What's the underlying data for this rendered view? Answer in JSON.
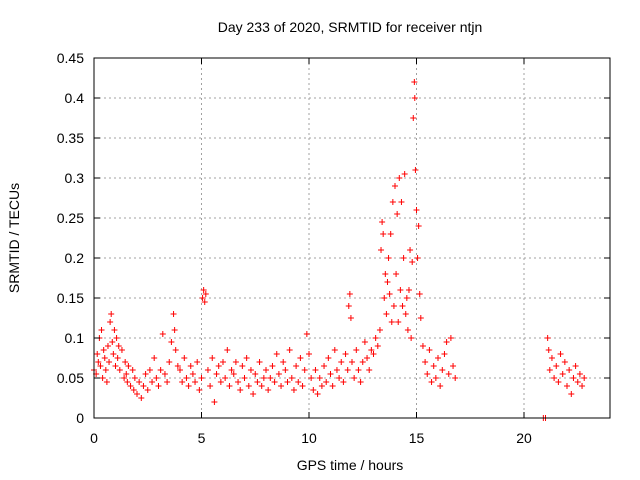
{
  "chart_data": {
    "type": "scatter",
    "title": "Day 233 of 2020, SRMTID for receiver ntjn",
    "xlabel": "GPS time / hours",
    "ylabel": "SRMTID / TECUs",
    "xlim": [
      0,
      24
    ],
    "ylim": [
      0,
      0.45
    ],
    "xticks": [
      "0",
      "5",
      "10",
      "15",
      "20"
    ],
    "yticks": [
      "0",
      "0.05",
      "0.1",
      "0.15",
      "0.2",
      "0.25",
      "0.3",
      "0.35",
      "0.4",
      "0.45"
    ],
    "grid": true,
    "marker": "plus",
    "series": [
      {
        "color": "#ff0000",
        "points": [
          [
            0.0,
            0.06
          ],
          [
            0.1,
            0.055
          ],
          [
            0.15,
            0.08
          ],
          [
            0.2,
            0.07
          ],
          [
            0.25,
            0.1
          ],
          [
            0.3,
            0.065
          ],
          [
            0.35,
            0.11
          ],
          [
            0.4,
            0.05
          ],
          [
            0.45,
            0.085
          ],
          [
            0.5,
            0.075
          ],
          [
            0.55,
            0.06
          ],
          [
            0.6,
            0.045
          ],
          [
            0.65,
            0.09
          ],
          [
            0.7,
            0.07
          ],
          [
            0.75,
            0.12
          ],
          [
            0.8,
            0.13
          ],
          [
            0.85,
            0.095
          ],
          [
            0.9,
            0.08
          ],
          [
            0.95,
            0.11
          ],
          [
            1.0,
            0.065
          ],
          [
            1.05,
            0.1
          ],
          [
            1.1,
            0.075
          ],
          [
            1.15,
            0.09
          ],
          [
            1.2,
            0.06
          ],
          [
            1.3,
            0.085
          ],
          [
            1.4,
            0.05
          ],
          [
            1.45,
            0.07
          ],
          [
            1.5,
            0.055
          ],
          [
            1.55,
            0.045
          ],
          [
            1.6,
            0.065
          ],
          [
            1.7,
            0.04
          ],
          [
            1.8,
            0.06
          ],
          [
            1.85,
            0.035
          ],
          [
            1.9,
            0.05
          ],
          [
            2.0,
            0.03
          ],
          [
            2.1,
            0.045
          ],
          [
            2.2,
            0.025
          ],
          [
            2.3,
            0.04
          ],
          [
            2.4,
            0.055
          ],
          [
            2.5,
            0.035
          ],
          [
            2.6,
            0.06
          ],
          [
            2.7,
            0.045
          ],
          [
            2.8,
            0.075
          ],
          [
            2.9,
            0.05
          ],
          [
            3.0,
            0.04
          ],
          [
            3.1,
            0.06
          ],
          [
            3.2,
            0.105
          ],
          [
            3.3,
            0.055
          ],
          [
            3.4,
            0.045
          ],
          [
            3.5,
            0.07
          ],
          [
            3.6,
            0.095
          ],
          [
            3.7,
            0.13
          ],
          [
            3.75,
            0.11
          ],
          [
            3.8,
            0.085
          ],
          [
            3.9,
            0.065
          ],
          [
            4.0,
            0.06
          ],
          [
            4.1,
            0.045
          ],
          [
            4.2,
            0.075
          ],
          [
            4.3,
            0.05
          ],
          [
            4.4,
            0.04
          ],
          [
            4.5,
            0.065
          ],
          [
            4.6,
            0.055
          ],
          [
            4.7,
            0.045
          ],
          [
            4.8,
            0.07
          ],
          [
            4.9,
            0.035
          ],
          [
            5.0,
            0.05
          ],
          [
            5.05,
            0.15
          ],
          [
            5.1,
            0.16
          ],
          [
            5.15,
            0.145
          ],
          [
            5.2,
            0.155
          ],
          [
            5.3,
            0.06
          ],
          [
            5.4,
            0.04
          ],
          [
            5.5,
            0.075
          ],
          [
            5.6,
            0.02
          ],
          [
            5.7,
            0.055
          ],
          [
            5.8,
            0.065
          ],
          [
            5.9,
            0.045
          ],
          [
            6.0,
            0.07
          ],
          [
            6.1,
            0.05
          ],
          [
            6.2,
            0.085
          ],
          [
            6.3,
            0.04
          ],
          [
            6.4,
            0.06
          ],
          [
            6.5,
            0.055
          ],
          [
            6.6,
            0.07
          ],
          [
            6.7,
            0.045
          ],
          [
            6.8,
            0.035
          ],
          [
            6.9,
            0.065
          ],
          [
            7.0,
            0.05
          ],
          [
            7.1,
            0.075
          ],
          [
            7.2,
            0.04
          ],
          [
            7.3,
            0.06
          ],
          [
            7.4,
            0.03
          ],
          [
            7.5,
            0.055
          ],
          [
            7.6,
            0.045
          ],
          [
            7.7,
            0.07
          ],
          [
            7.8,
            0.04
          ],
          [
            7.9,
            0.05
          ],
          [
            8.0,
            0.06
          ],
          [
            8.1,
            0.035
          ],
          [
            8.2,
            0.05
          ],
          [
            8.3,
            0.065
          ],
          [
            8.4,
            0.045
          ],
          [
            8.5,
            0.08
          ],
          [
            8.6,
            0.055
          ],
          [
            8.7,
            0.04
          ],
          [
            8.8,
            0.07
          ],
          [
            8.9,
            0.06
          ],
          [
            9.0,
            0.045
          ],
          [
            9.1,
            0.085
          ],
          [
            9.2,
            0.05
          ],
          [
            9.3,
            0.035
          ],
          [
            9.4,
            0.065
          ],
          [
            9.5,
            0.045
          ],
          [
            9.6,
            0.075
          ],
          [
            9.7,
            0.04
          ],
          [
            9.8,
            0.06
          ],
          [
            9.9,
            0.105
          ],
          [
            10.0,
            0.08
          ],
          [
            10.1,
            0.05
          ],
          [
            10.2,
            0.035
          ],
          [
            10.3,
            0.06
          ],
          [
            10.4,
            0.03
          ],
          [
            10.5,
            0.05
          ],
          [
            10.6,
            0.04
          ],
          [
            10.7,
            0.065
          ],
          [
            10.8,
            0.045
          ],
          [
            10.9,
            0.075
          ],
          [
            11.0,
            0.055
          ],
          [
            11.1,
            0.04
          ],
          [
            11.2,
            0.085
          ],
          [
            11.3,
            0.06
          ],
          [
            11.4,
            0.05
          ],
          [
            11.5,
            0.07
          ],
          [
            11.6,
            0.045
          ],
          [
            11.7,
            0.08
          ],
          [
            11.8,
            0.06
          ],
          [
            11.85,
            0.14
          ],
          [
            11.9,
            0.155
          ],
          [
            11.95,
            0.125
          ],
          [
            12.0,
            0.07
          ],
          [
            12.1,
            0.05
          ],
          [
            12.2,
            0.085
          ],
          [
            12.3,
            0.06
          ],
          [
            12.4,
            0.045
          ],
          [
            12.5,
            0.07
          ],
          [
            12.6,
            0.095
          ],
          [
            12.7,
            0.075
          ],
          [
            12.8,
            0.06
          ],
          [
            12.9,
            0.085
          ],
          [
            13.0,
            0.08
          ],
          [
            13.1,
            0.1
          ],
          [
            13.2,
            0.09
          ],
          [
            13.3,
            0.11
          ],
          [
            13.35,
            0.21
          ],
          [
            13.4,
            0.245
          ],
          [
            13.45,
            0.23
          ],
          [
            13.5,
            0.15
          ],
          [
            13.55,
            0.18
          ],
          [
            13.6,
            0.13
          ],
          [
            13.65,
            0.17
          ],
          [
            13.7,
            0.2
          ],
          [
            13.75,
            0.155
          ],
          [
            13.8,
            0.23
          ],
          [
            13.85,
            0.12
          ],
          [
            13.9,
            0.27
          ],
          [
            13.95,
            0.14
          ],
          [
            14.0,
            0.29
          ],
          [
            14.05,
            0.18
          ],
          [
            14.1,
            0.255
          ],
          [
            14.15,
            0.12
          ],
          [
            14.2,
            0.3
          ],
          [
            14.25,
            0.16
          ],
          [
            14.3,
            0.27
          ],
          [
            14.35,
            0.14
          ],
          [
            14.4,
            0.2
          ],
          [
            14.45,
            0.305
          ],
          [
            14.5,
            0.13
          ],
          [
            14.55,
            0.15
          ],
          [
            14.6,
            0.11
          ],
          [
            14.65,
            0.16
          ],
          [
            14.7,
            0.21
          ],
          [
            14.75,
            0.1
          ],
          [
            14.8,
            0.195
          ],
          [
            14.85,
            0.375
          ],
          [
            14.9,
            0.42
          ],
          [
            14.92,
            0.4
          ],
          [
            14.95,
            0.31
          ],
          [
            15.0,
            0.26
          ],
          [
            15.05,
            0.2
          ],
          [
            15.1,
            0.24
          ],
          [
            15.15,
            0.155
          ],
          [
            15.2,
            0.125
          ],
          [
            15.3,
            0.09
          ],
          [
            15.4,
            0.07
          ],
          [
            15.5,
            0.055
          ],
          [
            15.6,
            0.085
          ],
          [
            15.7,
            0.045
          ],
          [
            15.8,
            0.065
          ],
          [
            15.9,
            0.05
          ],
          [
            16.0,
            0.075
          ],
          [
            16.1,
            0.04
          ],
          [
            16.2,
            0.06
          ],
          [
            16.3,
            0.08
          ],
          [
            16.4,
            0.095
          ],
          [
            16.5,
            0.055
          ],
          [
            16.6,
            0.1
          ],
          [
            16.7,
            0.065
          ],
          [
            16.8,
            0.05
          ],
          [
            20.9,
            0.0
          ],
          [
            21.0,
            0.0
          ],
          [
            21.1,
            0.1
          ],
          [
            21.15,
            0.085
          ],
          [
            21.2,
            0.06
          ],
          [
            21.3,
            0.075
          ],
          [
            21.4,
            0.05
          ],
          [
            21.5,
            0.065
          ],
          [
            21.6,
            0.045
          ],
          [
            21.7,
            0.08
          ],
          [
            21.8,
            0.055
          ],
          [
            21.9,
            0.07
          ],
          [
            22.0,
            0.04
          ],
          [
            22.1,
            0.06
          ],
          [
            22.2,
            0.03
          ],
          [
            22.3,
            0.05
          ],
          [
            22.4,
            0.065
          ],
          [
            22.5,
            0.045
          ],
          [
            22.6,
            0.055
          ],
          [
            22.7,
            0.04
          ],
          [
            22.8,
            0.05
          ]
        ]
      }
    ]
  }
}
